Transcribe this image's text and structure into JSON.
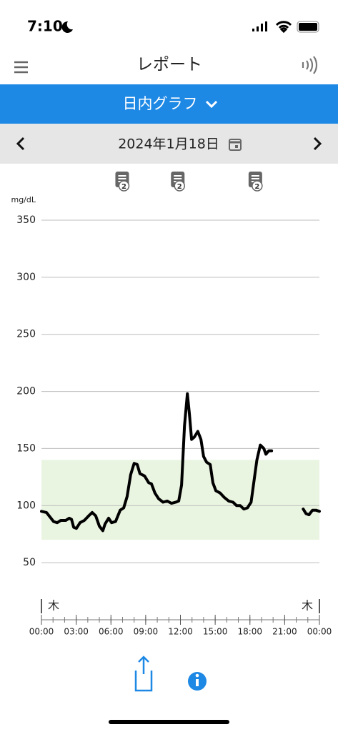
{
  "status_bar": {
    "time": "7:10"
  },
  "header": {
    "title": "レポート"
  },
  "view_selector": {
    "label": "日内グラフ"
  },
  "date_bar": {
    "date": "2024年1月18日"
  },
  "chart_data": {
    "type": "line",
    "y_label": "mg/dL",
    "xlim": [
      0,
      24
    ],
    "xticks": [
      {
        "value": 0,
        "label": "00:00"
      },
      {
        "value": 3,
        "label": "03:00"
      },
      {
        "value": 6,
        "label": "06:00"
      },
      {
        "value": 9,
        "label": "09:00"
      },
      {
        "value": 12,
        "label": "12:00"
      },
      {
        "value": 15,
        "label": "15:00"
      },
      {
        "value": 18,
        "label": "18:00"
      },
      {
        "value": 21,
        "label": "21:00"
      },
      {
        "value": 24,
        "label": "00:00"
      }
    ],
    "xminorticks": [
      0,
      1,
      2,
      3,
      4,
      5,
      6,
      7,
      8,
      9,
      10,
      11,
      12,
      13,
      14,
      15,
      16,
      17,
      18,
      19,
      20,
      21,
      22,
      23,
      24
    ],
    "ylim": [
      0,
      350
    ],
    "yticks": [
      50,
      100,
      150,
      200,
      250,
      300,
      350
    ],
    "grid": true,
    "target_range": [
      70,
      140
    ],
    "target_color": "#eaf5e1",
    "day_labels": [
      {
        "x": 0,
        "label": "木"
      },
      {
        "x": 24,
        "label": "木"
      }
    ],
    "notes": [
      {
        "x": 7.0,
        "count": "2"
      },
      {
        "x": 11.8,
        "count": "2"
      },
      {
        "x": 18.5,
        "count": "2"
      }
    ],
    "series": [
      {
        "name": "glucose",
        "color": "#000000",
        "x": [
          0,
          0.43,
          1.05,
          1.36,
          1.67,
          2.1,
          2.4,
          2.6,
          2.78,
          3.02,
          3.33,
          3.7,
          4.07,
          4.38,
          4.69,
          5.0,
          5.3,
          5.5,
          5.8,
          6.05,
          6.4,
          6.8,
          7.1,
          7.4,
          7.7,
          8.0,
          8.27,
          8.5,
          8.9,
          9.26,
          9.5,
          9.8,
          10.12,
          10.5,
          10.86,
          11.23,
          11.6,
          11.85,
          12.1,
          12.35,
          12.6,
          12.78,
          12.96,
          13.2,
          13.5,
          13.77,
          14.0,
          14.26,
          14.57,
          14.8,
          15.06,
          15.43,
          15.8,
          16.17,
          16.54,
          16.85,
          17.16,
          17.47,
          17.78,
          18.1,
          18.4,
          18.6,
          18.9,
          19.2,
          19.38,
          19.63,
          19.88,
          21.0,
          22.6,
          22.84,
          23.1,
          23.4,
          23.7,
          24
        ],
        "values": [
          95,
          94,
          86,
          85,
          87,
          87,
          89,
          88,
          81,
          80,
          85,
          87,
          91,
          94,
          91,
          82,
          78,
          84,
          89,
          85,
          86,
          96,
          98,
          108,
          127,
          137,
          136,
          128,
          126,
          120,
          119,
          111,
          106,
          103,
          104,
          102,
          103,
          104,
          118,
          170,
          198,
          180,
          158,
          160,
          165,
          158,
          143,
          138,
          136,
          120,
          113,
          111,
          107,
          104,
          103,
          100,
          100,
          97,
          98,
          103,
          125,
          140,
          153,
          150,
          145,
          148,
          148,
          null,
          97,
          93,
          92,
          96,
          96,
          95
        ]
      }
    ]
  }
}
